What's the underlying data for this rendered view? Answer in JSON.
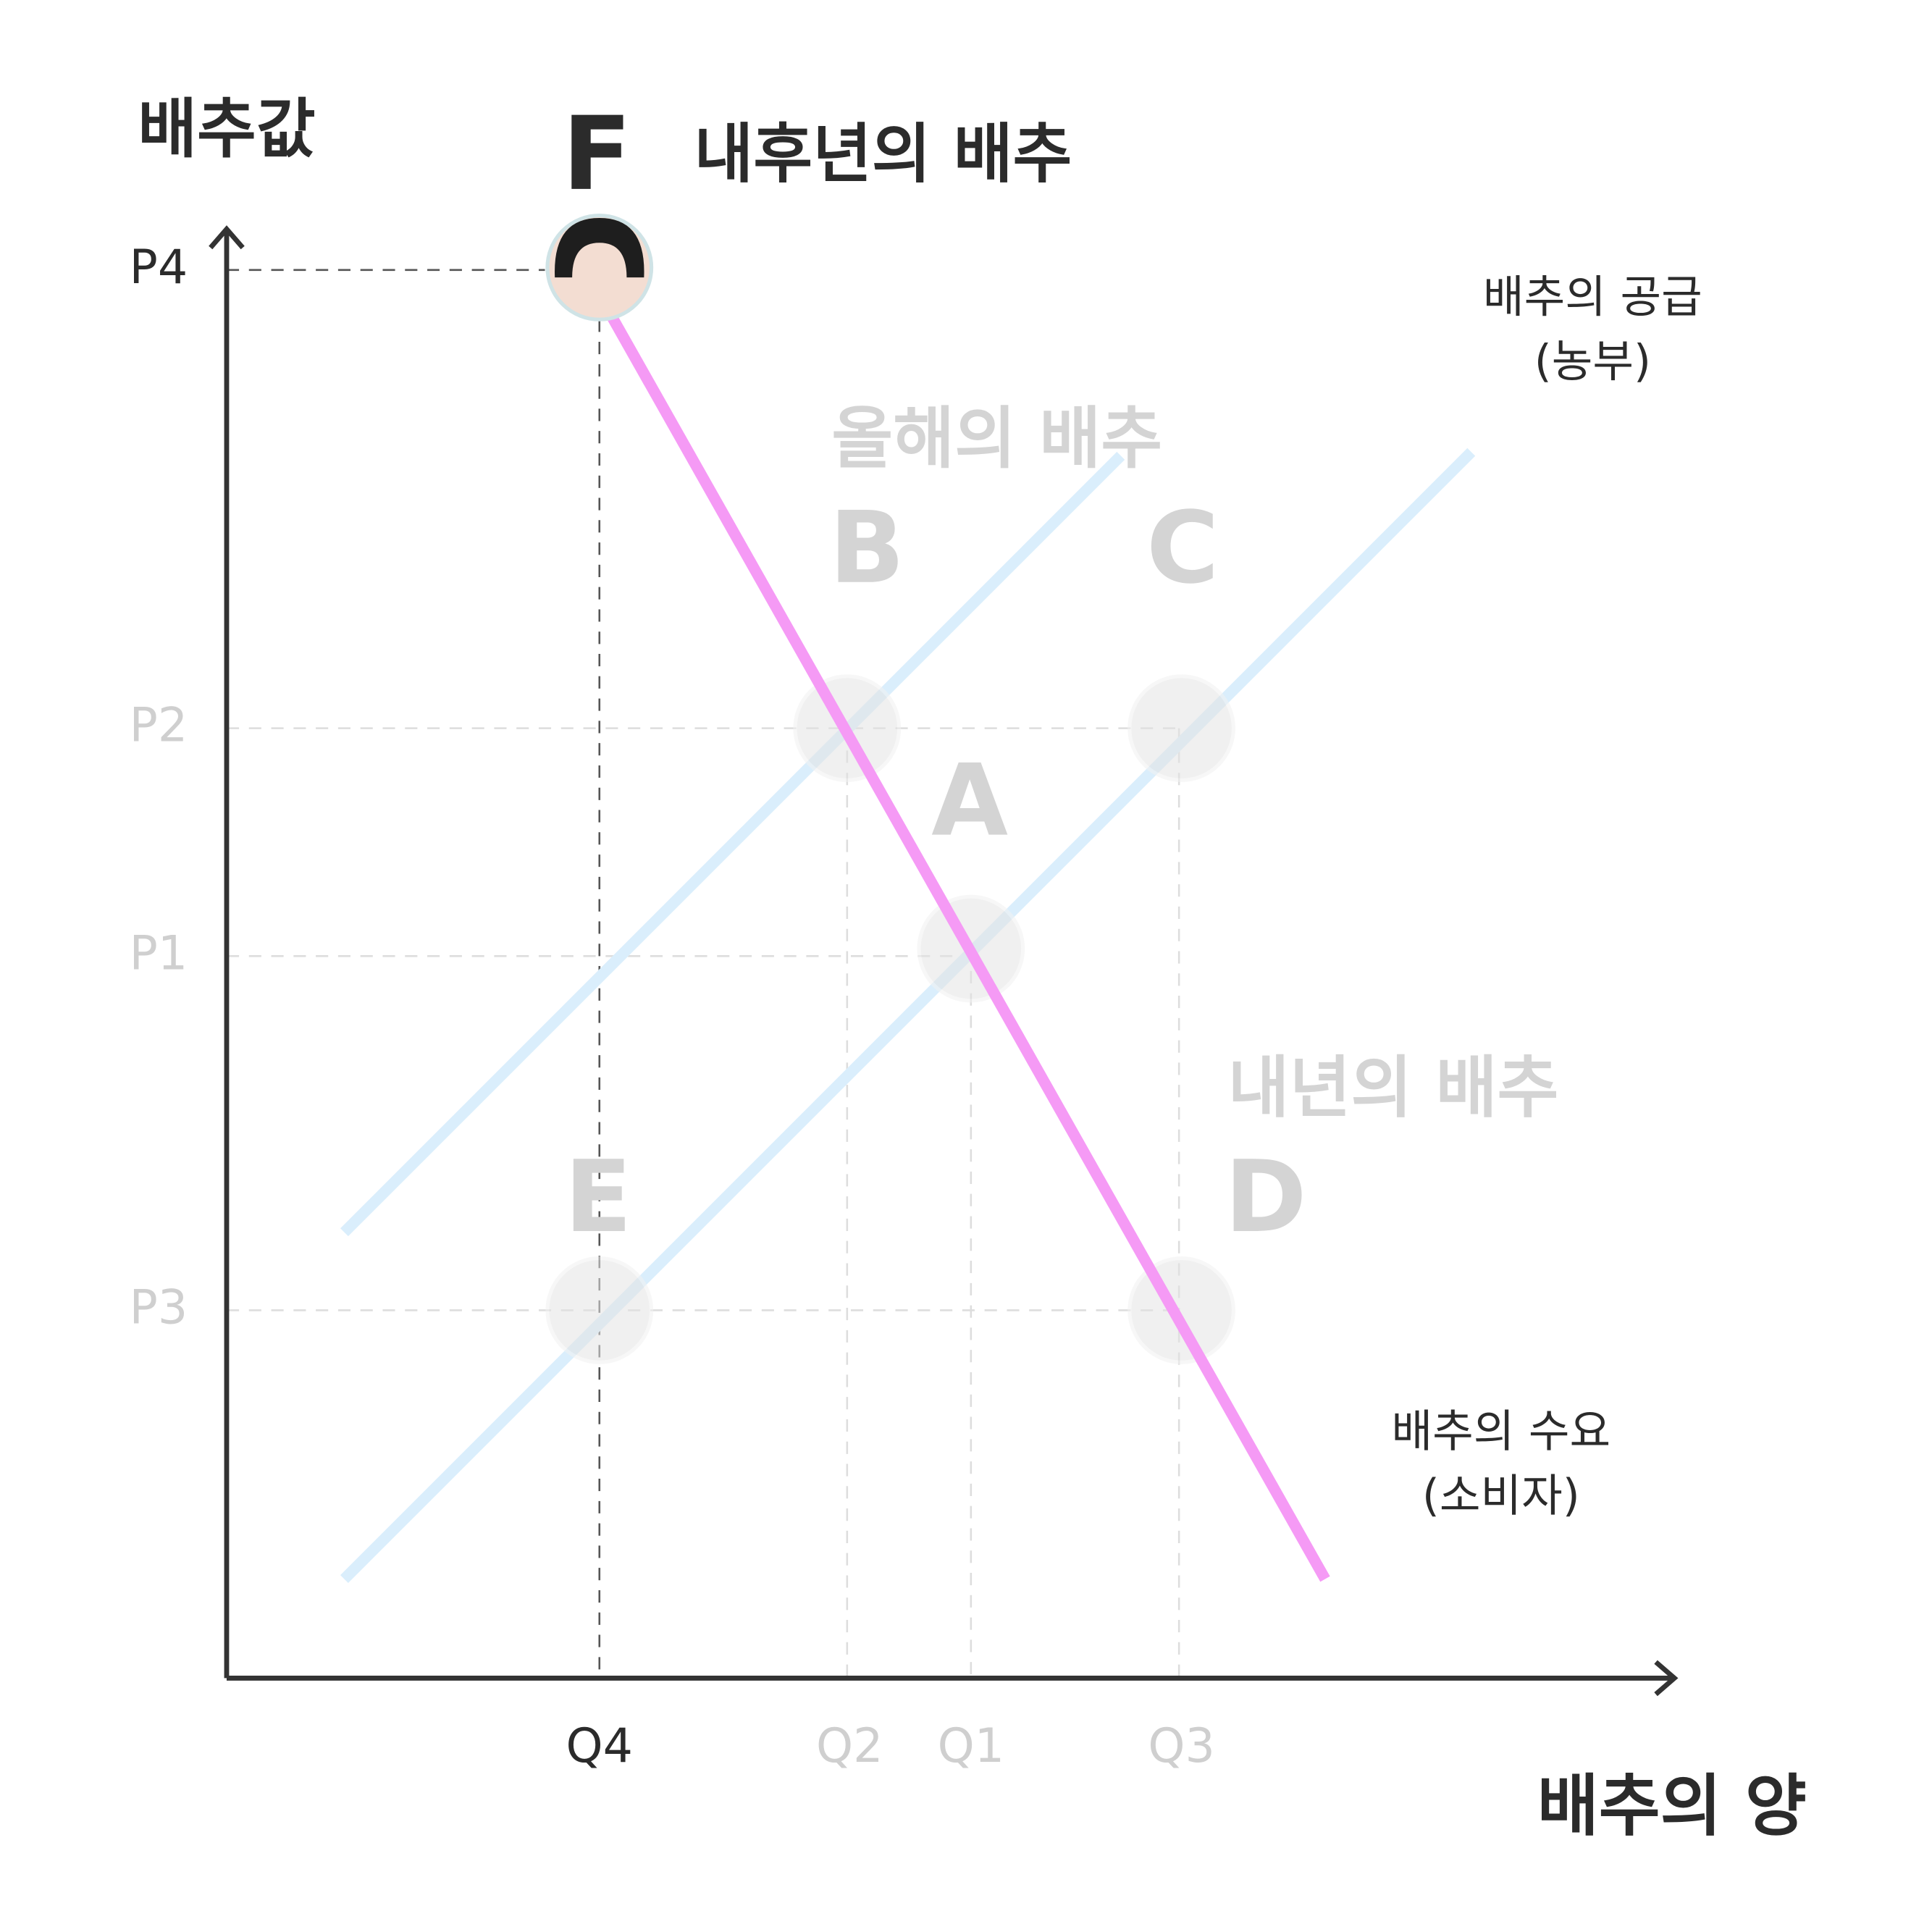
{
  "axes": {
    "y_label": "배추값",
    "x_label": "배추의 양",
    "y_ticks": [
      "P4",
      "P2",
      "P1",
      "P3"
    ],
    "x_ticks": [
      "Q4",
      "Q2",
      "Q1",
      "Q3"
    ]
  },
  "points": {
    "F": "F",
    "B": "B",
    "C": "C",
    "A": "A",
    "E": "E",
    "D": "D"
  },
  "scenarios": {
    "year_after_next": "내후년의 배추",
    "this_year": "올해의 배추",
    "next_year": "내년의 배추"
  },
  "curves": {
    "supply": [
      "배추의 공급",
      "(농부)"
    ],
    "demand": [
      "배추의 수요",
      "(소비자)"
    ]
  }
}
